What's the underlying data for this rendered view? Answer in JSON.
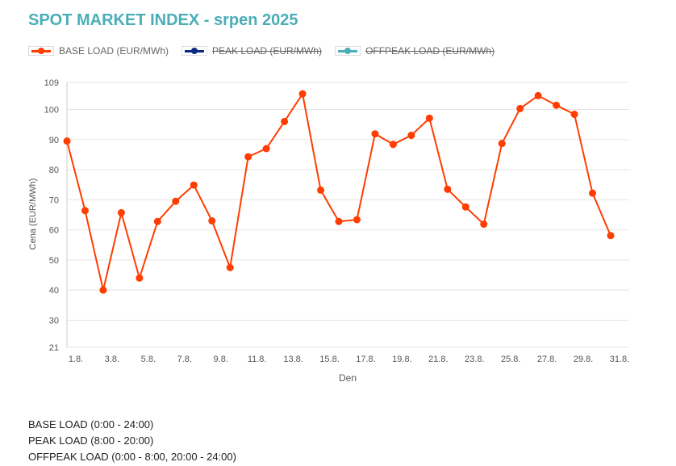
{
  "title": "SPOT MARKET INDEX - srpen 2025",
  "legend": [
    {
      "label": "BASE LOAD (EUR/MWh)",
      "color": "#ff3d00",
      "hidden": false
    },
    {
      "label": "PEAK LOAD (EUR/MWh)",
      "color": "#0d2a80",
      "hidden": true
    },
    {
      "label": "OFFPEAK LOAD (EUR/MWh)",
      "color": "#4aaeb7",
      "hidden": true
    }
  ],
  "notes": [
    "BASE LOAD (0:00 - 24:00)",
    "PEAK LOAD (8:00 - 20:00)",
    "OFFPEAK LOAD (0:00 - 8:00, 20:00 - 24:00)"
  ],
  "chart_data": {
    "type": "line",
    "xlabel": "Den",
    "ylabel": "Cena (EUR/MWh)",
    "ylim": [
      21,
      109
    ],
    "yticks": [
      21,
      30,
      40,
      50,
      60,
      70,
      80,
      90,
      100,
      109
    ],
    "xtick_labels": [
      "1.8.",
      "3.8.",
      "5.8.",
      "7.8.",
      "9.8.",
      "11.8.",
      "13.8.",
      "15.8.",
      "17.8.",
      "19.8.",
      "21.8.",
      "23.8.",
      "25.8.",
      "27.8.",
      "29.8.",
      "31.8."
    ],
    "x": [
      1,
      2,
      3,
      4,
      5,
      6,
      7,
      8,
      9,
      10,
      11,
      12,
      13,
      14,
      15,
      16,
      17,
      18,
      19,
      20,
      21,
      22,
      23,
      24,
      25,
      26,
      27,
      28,
      29,
      30,
      31
    ],
    "grid": true,
    "series": [
      {
        "name": "BASE LOAD (EUR/MWh)",
        "color": "#ff3d00",
        "values": [
          89.5,
          66.4,
          40,
          65.7,
          44,
          62.8,
          69.5,
          74.9,
          63,
          47.5,
          84.3,
          87,
          96,
          105.2,
          73.2,
          62.8,
          63.4,
          91.9,
          88.4,
          91.4,
          97.1,
          73.5,
          67.6,
          61.9,
          88.7,
          100.3,
          104.6,
          101.4,
          98.4,
          72.2,
          58.1
        ]
      }
    ]
  }
}
